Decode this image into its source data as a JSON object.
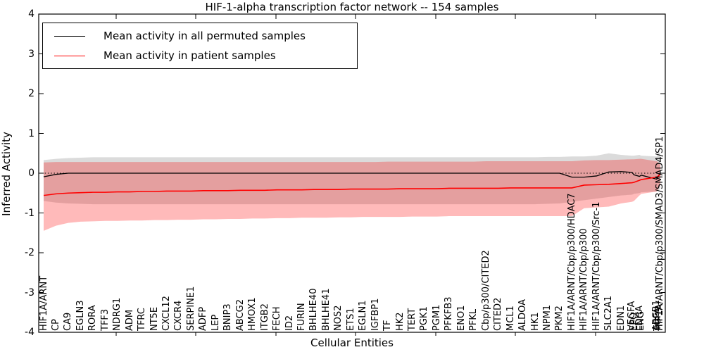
{
  "figure": {
    "title": "HIF-1-alpha transcription factor network -- 154 samples",
    "xlabel": "Cellular Entities",
    "ylabel": "Inferred Activity"
  },
  "legend": {
    "items": [
      {
        "label": "Mean activity in all permuted samples",
        "color": "#000000"
      },
      {
        "label": "Mean activity in patient samples",
        "color": "#ff0000"
      }
    ]
  },
  "axes": {
    "y_ticks": [
      4,
      3,
      2,
      1,
      0,
      -1,
      -2,
      -3,
      -4
    ],
    "ylim": [
      -4,
      4
    ],
    "zero_line": 0
  },
  "chart_data": {
    "type": "line",
    "title": "HIF-1-alpha transcription factor network -- 154 samples",
    "xlabel": "Cellular Entities",
    "ylabel": "Inferred Activity",
    "ylim": [
      -4,
      4
    ],
    "grid": false,
    "legend_position": "upper left",
    "entities": {
      "names": [
        "HIF1A/ARNT",
        "CP",
        "CA9",
        "EGLN3",
        "RORA",
        "TFF3",
        "NDRG1",
        "ADM",
        "TFRC",
        "NT5E",
        "CXCL12",
        "CXCR4",
        "SERPINE1",
        "ADFP",
        "LEP",
        "BNIP3",
        "ABCG2",
        "HMOX1",
        "ITGB2",
        "FECH",
        "ID2",
        "FURIN",
        "BHLHE40",
        "BHLHE41",
        "NOS2",
        "ETS1",
        "EGLN1",
        "IGFBP1",
        "TF",
        "HK2",
        "TERT",
        "PGK1",
        "PGM1",
        "PFKFB3",
        "ENO1",
        "PFKL",
        "Cbp/p300/CITED2",
        "CITED2",
        "MCL1",
        "ALDOA",
        "HK1",
        "NPM1",
        "PKM2",
        "HIF1A/ARNT/Cbp/p300/HDAC7",
        "HIF1A/ARNT/Cbp/p300",
        "HIF1A/ARNT/Cbp/p300/Src-1",
        "SLC2A1",
        "EDN1",
        "VEGFA",
        "EPO",
        "LDHA",
        "ENG",
        "ABCB1",
        "TGFA",
        "HIF1A",
        "HIF1A/ARNT/Cbp/p300/SMAD3/SMAD4/SP1"
      ],
      "x": [
        0,
        1,
        2,
        3,
        4,
        5,
        6,
        7,
        8,
        9,
        10,
        11,
        12,
        13,
        14,
        15,
        16,
        17,
        18,
        19,
        20,
        21,
        22,
        23,
        24,
        25,
        26,
        27,
        28,
        29,
        30,
        31,
        32,
        33,
        34,
        35,
        36,
        37,
        38,
        39,
        40,
        41,
        42,
        43,
        44,
        45,
        46,
        47,
        47.9,
        48.05,
        48.5,
        48.65,
        49.9,
        50,
        50.1,
        50.2
      ]
    },
    "series": [
      {
        "name": "Mean activity in all permuted samples",
        "color": "#000000",
        "values": [
          -0.09,
          -0.03,
          0,
          0,
          0,
          0,
          0,
          0,
          0,
          0,
          0,
          0,
          0,
          0,
          0,
          0,
          0,
          0,
          0,
          0,
          0,
          0,
          0,
          0,
          0,
          0,
          0,
          0,
          0,
          0,
          0,
          0,
          0,
          0,
          0,
          0,
          0,
          0,
          0,
          0,
          0,
          0,
          0,
          -0.1,
          -0.1,
          -0.07,
          0.03,
          0.04,
          0.02,
          -0.04,
          -0.08,
          -0.05,
          -0.15,
          -0.1,
          -0.04,
          -0.01
        ]
      },
      {
        "name": "Mean activity in patient samples",
        "color": "#ff0000",
        "values": [
          -0.56,
          -0.52,
          -0.5,
          -0.49,
          -0.48,
          -0.48,
          -0.47,
          -0.47,
          -0.46,
          -0.46,
          -0.45,
          -0.45,
          -0.45,
          -0.44,
          -0.44,
          -0.44,
          -0.43,
          -0.43,
          -0.43,
          -0.42,
          -0.42,
          -0.42,
          -0.41,
          -0.41,
          -0.41,
          -0.4,
          -0.4,
          -0.4,
          -0.4,
          -0.39,
          -0.39,
          -0.39,
          -0.39,
          -0.38,
          -0.38,
          -0.38,
          -0.38,
          -0.38,
          -0.37,
          -0.37,
          -0.37,
          -0.37,
          -0.37,
          -0.37,
          -0.3,
          -0.29,
          -0.28,
          -0.26,
          -0.24,
          -0.23,
          -0.18,
          -0.16,
          -0.1,
          -0.08,
          -0.05,
          -0.03
        ]
      }
    ],
    "bands": [
      {
        "name": "permuted-range",
        "color": "#000000",
        "opacity": 0.14,
        "upper": [
          0.33,
          0.36,
          0.38,
          0.39,
          0.4,
          0.4,
          0.4,
          0.4,
          0.4,
          0.4,
          0.4,
          0.4,
          0.4,
          0.4,
          0.4,
          0.4,
          0.4,
          0.4,
          0.4,
          0.4,
          0.4,
          0.4,
          0.4,
          0.4,
          0.4,
          0.4,
          0.4,
          0.4,
          0.4,
          0.4,
          0.4,
          0.4,
          0.4,
          0.4,
          0.4,
          0.4,
          0.4,
          0.4,
          0.4,
          0.4,
          0.4,
          0.41,
          0.41,
          0.42,
          0.42,
          0.44,
          0.5,
          0.46,
          0.44,
          0.44,
          0.46,
          0.44,
          0.42,
          0.5,
          0.52,
          0.5
        ],
        "lower": [
          -0.7,
          -0.74,
          -0.76,
          -0.77,
          -0.78,
          -0.78,
          -0.78,
          -0.78,
          -0.78,
          -0.78,
          -0.78,
          -0.78,
          -0.78,
          -0.78,
          -0.78,
          -0.78,
          -0.78,
          -0.78,
          -0.78,
          -0.78,
          -0.78,
          -0.78,
          -0.78,
          -0.78,
          -0.78,
          -0.78,
          -0.78,
          -0.78,
          -0.78,
          -0.78,
          -0.78,
          -0.78,
          -0.78,
          -0.78,
          -0.78,
          -0.78,
          -0.78,
          -0.78,
          -0.78,
          -0.78,
          -0.78,
          -0.77,
          -0.76,
          -0.72,
          -0.68,
          -0.64,
          -0.6,
          -0.56,
          -0.54,
          -0.52,
          -0.5,
          -0.48,
          -0.46,
          -0.44,
          -0.42,
          -0.4
        ]
      },
      {
        "name": "patient-range",
        "color": "#ff0000",
        "opacity": 0.27,
        "upper": [
          0.27,
          0.28,
          0.28,
          0.28,
          0.28,
          0.28,
          0.28,
          0.28,
          0.28,
          0.28,
          0.28,
          0.28,
          0.28,
          0.28,
          0.28,
          0.28,
          0.28,
          0.28,
          0.28,
          0.28,
          0.28,
          0.28,
          0.28,
          0.28,
          0.28,
          0.28,
          0.28,
          0.28,
          0.29,
          0.29,
          0.29,
          0.29,
          0.29,
          0.29,
          0.29,
          0.29,
          0.3,
          0.3,
          0.3,
          0.3,
          0.3,
          0.3,
          0.3,
          0.3,
          0.32,
          0.33,
          0.33,
          0.34,
          0.35,
          0.35,
          0.36,
          0.36,
          0.3,
          0.28,
          0.26,
          0.22
        ],
        "lower": [
          -1.45,
          -1.32,
          -1.25,
          -1.22,
          -1.21,
          -1.2,
          -1.2,
          -1.19,
          -1.19,
          -1.18,
          -1.18,
          -1.17,
          -1.17,
          -1.16,
          -1.16,
          -1.15,
          -1.15,
          -1.14,
          -1.14,
          -1.13,
          -1.13,
          -1.12,
          -1.12,
          -1.12,
          -1.11,
          -1.11,
          -1.1,
          -1.1,
          -1.1,
          -1.1,
          -1.09,
          -1.09,
          -1.09,
          -1.08,
          -1.08,
          -1.08,
          -1.08,
          -1.08,
          -1.08,
          -1.08,
          -1.08,
          -1.08,
          -1.08,
          -1.08,
          -0.88,
          -0.86,
          -0.84,
          -0.76,
          -0.72,
          -0.7,
          -0.56,
          -0.52,
          -0.46,
          -0.42,
          -0.36,
          -0.28
        ]
      }
    ]
  }
}
